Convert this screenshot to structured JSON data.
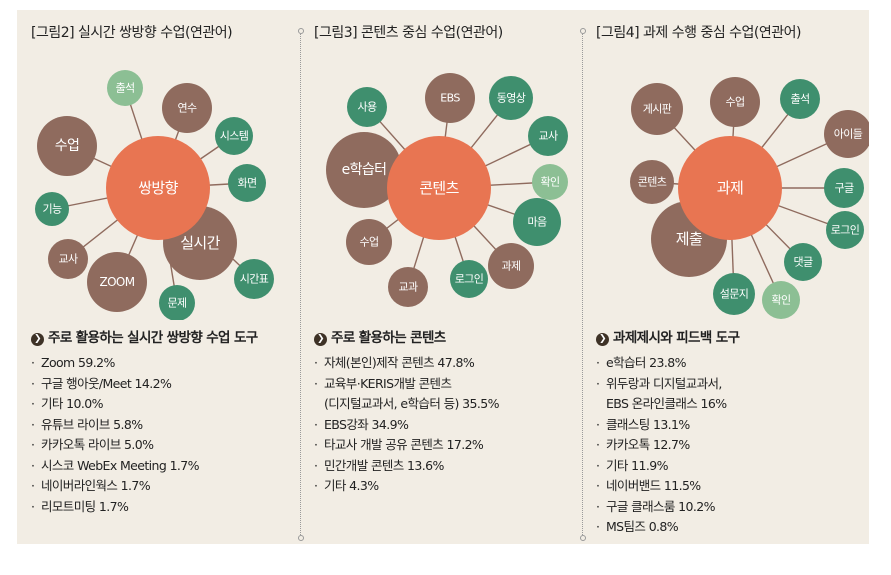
{
  "colors": {
    "background": "#f2ede4",
    "center": "#e87552",
    "brown": "#8f6b5e",
    "green": "#3f8f6e",
    "light_green": "#8cbf94"
  },
  "panels": [
    {
      "title": "[그림2] 실시간 쌍방향 수업(연관어)",
      "center": "쌍방향",
      "nodes": [
        {
          "label": "출석",
          "color": "light_green"
        },
        {
          "label": "연수",
          "color": "brown"
        },
        {
          "label": "수업",
          "color": "brown"
        },
        {
          "label": "시스템",
          "color": "green"
        },
        {
          "label": "화면",
          "color": "green"
        },
        {
          "label": "기능",
          "color": "green"
        },
        {
          "label": "실시간",
          "color": "brown"
        },
        {
          "label": "교사",
          "color": "brown"
        },
        {
          "label": "ZOOM",
          "color": "brown"
        },
        {
          "label": "시간표",
          "color": "green"
        },
        {
          "label": "문제",
          "color": "green"
        }
      ],
      "section_title": "주로 활용하는 실시간 쌍방향 수업 도구",
      "items": [
        "Zoom 59.2%",
        "구글 행아웃/Meet 14.2%",
        "기타 10.0%",
        "유튜브 라이브 5.8%",
        "카카오톡 라이브 5.0%",
        "시스코 WebEx Meeting 1.7%",
        "네이버라인웍스 1.7%",
        "리모트미팅 1.7%"
      ]
    },
    {
      "title": "[그림3] 콘텐츠 중심 수업(연관어)",
      "center": "콘텐츠",
      "nodes": [
        {
          "label": "사용",
          "color": "green"
        },
        {
          "label": "EBS",
          "color": "brown"
        },
        {
          "label": "동영상",
          "color": "green"
        },
        {
          "label": "교사",
          "color": "green"
        },
        {
          "label": "e학습터",
          "color": "brown"
        },
        {
          "label": "확인",
          "color": "light_green"
        },
        {
          "label": "마음",
          "color": "green"
        },
        {
          "label": "수업",
          "color": "brown"
        },
        {
          "label": "과제",
          "color": "brown"
        },
        {
          "label": "교과",
          "color": "brown"
        },
        {
          "label": "로그인",
          "color": "green"
        }
      ],
      "section_title": "주로 활용하는 콘텐츠",
      "items": [
        "자체(본인)제작 콘텐츠 47.8%",
        "교육부·KERIS개발 콘텐츠",
        "(디지털교과서, e학습터 등) 35.5%",
        "EBS강좌 34.9%",
        "타교사 개발 공유 콘텐츠 17.2%",
        "민간개발 콘텐츠 13.6%",
        "기타 4.3%"
      ]
    },
    {
      "title": "[그림4] 과제 수행 중심 수업(연관어)",
      "center": "과제",
      "nodes": [
        {
          "label": "게시판",
          "color": "brown"
        },
        {
          "label": "수업",
          "color": "brown"
        },
        {
          "label": "출석",
          "color": "green"
        },
        {
          "label": "아이들",
          "color": "brown"
        },
        {
          "label": "콘텐츠",
          "color": "brown"
        },
        {
          "label": "구글",
          "color": "green"
        },
        {
          "label": "로그인",
          "color": "green"
        },
        {
          "label": "제출",
          "color": "brown"
        },
        {
          "label": "댓글",
          "color": "green"
        },
        {
          "label": "설문지",
          "color": "green"
        },
        {
          "label": "확인",
          "color": "light_green"
        }
      ],
      "section_title": "과제제시와 피드백 도구",
      "items": [
        "e학습터 23.8%",
        "위두랑과 디지털교과서,",
        "EBS 온라인클래스 16%",
        "클래스팅 13.1%",
        "카카오톡 12.7%",
        "기타 11.9%",
        "네이버밴드 11.5%",
        "구글 클래스룸 10.2%",
        "MS팀즈 0.8%"
      ]
    }
  ]
}
